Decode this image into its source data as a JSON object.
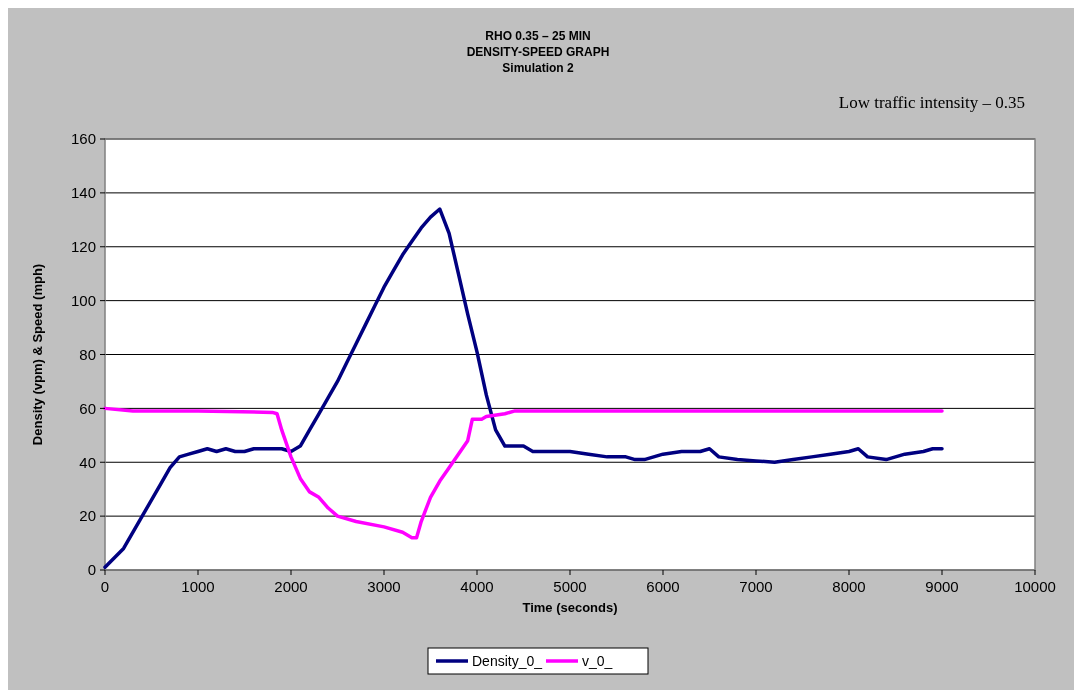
{
  "chart_data": {
    "type": "line",
    "title": "RHO 0.35 – 25 MIN\nDENSITY-SPEED GRAPH",
    "subtitle": "Simulation 2",
    "annotations": [
      "Low traffic intensity – 0.35"
    ],
    "xlabel": "Time (seconds)",
    "ylabel": "Density (vpm) & Speed (mph)",
    "xlim": [
      0,
      10000
    ],
    "xticks": [
      0,
      1000,
      2000,
      3000,
      4000,
      5000,
      6000,
      7000,
      8000,
      9000,
      10000
    ],
    "ylim": [
      0,
      160
    ],
    "yticks": [
      0,
      20,
      40,
      60,
      80,
      100,
      120,
      140,
      160
    ],
    "grid": "y",
    "legend": "bottom",
    "marker": "none",
    "line_style": "solid",
    "series": [
      {
        "name": "Density_0_",
        "color": "#000080",
        "x": [
          0,
          200,
          400,
          600,
          700,
          800,
          900,
          1000,
          1100,
          1200,
          1300,
          1400,
          1500,
          1600,
          1700,
          1800,
          1900,
          2000,
          2100,
          2200,
          2300,
          2400,
          2500,
          2600,
          2700,
          2800,
          2900,
          3000,
          3100,
          3200,
          3300,
          3400,
          3500,
          3600,
          3700,
          3800,
          3900,
          4000,
          4100,
          4200,
          4300,
          4400,
          4500,
          4600,
          4800,
          5000,
          5200,
          5400,
          5600,
          5700,
          5800,
          6000,
          6200,
          6400,
          6500,
          6600,
          6800,
          7000,
          7200,
          7400,
          7600,
          7800,
          8000,
          8100,
          8200,
          8400,
          8600,
          8800,
          8900,
          9000
        ],
        "values": [
          1,
          8,
          20,
          32,
          38,
          42,
          43,
          44,
          45,
          44,
          45,
          44,
          44,
          45,
          45,
          45,
          45,
          44,
          46,
          52,
          58,
          64,
          70,
          77,
          84,
          91,
          98,
          105,
          111,
          117,
          122,
          127,
          131,
          134,
          125,
          110,
          95,
          81,
          65,
          52,
          46,
          46,
          46,
          44,
          44,
          44,
          43,
          42,
          42,
          41,
          41,
          43,
          44,
          44,
          45,
          42,
          41,
          40.5,
          40,
          41,
          42,
          43,
          44,
          45,
          42,
          41,
          43,
          44,
          45,
          45
        ]
      },
      {
        "name": "v_0_",
        "color": "#ff00ff",
        "x": [
          0,
          300,
          1000,
          1800,
          1850,
          1900,
          2000,
          2100,
          2200,
          2300,
          2400,
          2500,
          2700,
          3000,
          3200,
          3300,
          3350,
          3400,
          3500,
          3600,
          3700,
          3800,
          3900,
          3950,
          4050,
          4100,
          4300,
          4400,
          5000,
          6000,
          7000,
          8000,
          9000
        ],
        "values": [
          60,
          59,
          59,
          58.5,
          58,
          52,
          42,
          34,
          29,
          27,
          23,
          20,
          18,
          16,
          14,
          12,
          12,
          18,
          27,
          33,
          38,
          43,
          48,
          56,
          56,
          57,
          58,
          59,
          59,
          59,
          59,
          59,
          59
        ]
      }
    ]
  }
}
